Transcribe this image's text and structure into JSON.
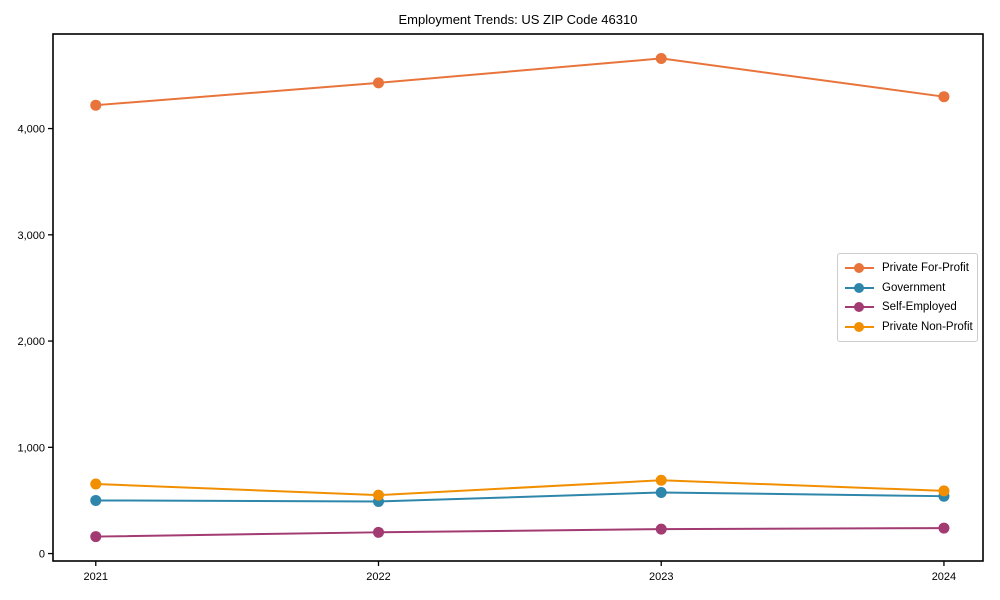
{
  "page": {
    "title": "Employment Trends: US ZIP Code 46310"
  },
  "chart_data": {
    "type": "line",
    "title": "Employment Trends: US ZIP Code 46310",
    "xlabel": "",
    "ylabel": "",
    "x": [
      2021,
      2022,
      2023,
      2024
    ],
    "x_tick_labels": [
      "2021",
      "2022",
      "2023",
      "2024"
    ],
    "series": [
      {
        "name": "Private For-Profit",
        "color": "#E8743B",
        "values": [
          4220,
          4430,
          4660,
          4300
        ]
      },
      {
        "name": "Government",
        "color": "#2E86AB",
        "values": [
          500,
          490,
          575,
          540
        ]
      },
      {
        "name": "Self-Employed",
        "color": "#A23B72",
        "values": [
          160,
          200,
          230,
          240
        ]
      },
      {
        "name": "Private Non-Profit",
        "color": "#F18F01",
        "values": [
          655,
          550,
          690,
          590
        ]
      }
    ],
    "y_ticks": [
      0,
      1000,
      2000,
      3000,
      4000
    ],
    "y_tick_labels": [
      "0",
      "1,000",
      "2,000",
      "3,000",
      "4,000"
    ],
    "ylim": [
      -70,
      4890
    ],
    "grid": false,
    "legend_position": "center-right",
    "marker": "circle",
    "axis_color": "#000000",
    "background_color": "#ffffff"
  }
}
